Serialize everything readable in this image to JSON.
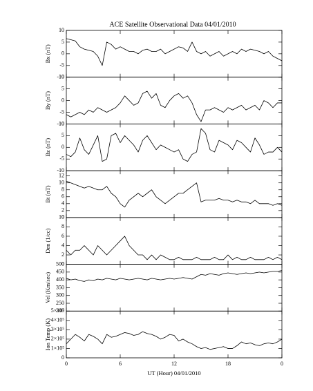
{
  "title": "ACE Satellite Observational Data   04/01/2010",
  "xlabel": "UT (Hour)   04/01/2010",
  "xlim": [
    0,
    24
  ],
  "xticks": [
    0,
    6,
    12,
    18,
    {
      "value": 24,
      "label": "0"
    }
  ],
  "x": [
    0,
    0.5,
    1,
    1.5,
    2,
    2.5,
    3,
    3.5,
    4,
    4.5,
    5,
    5.5,
    6,
    6.5,
    7,
    7.5,
    8,
    8.5,
    9,
    9.5,
    10,
    10.5,
    11,
    11.5,
    12,
    12.5,
    13,
    13.5,
    14,
    14.5,
    15,
    15.5,
    16,
    16.5,
    17,
    17.5,
    18,
    18.5,
    19,
    19.5,
    20,
    20.5,
    21,
    21.5,
    22,
    22.5,
    23,
    23.5,
    24
  ],
  "chart_data": [
    {
      "type": "line",
      "ylabel": "Bx (nT)",
      "ylim": [
        -10,
        10
      ],
      "yticks": [
        -10,
        -5,
        0,
        5,
        10
      ],
      "color": "#000000",
      "values": [
        6.5,
        6,
        5.5,
        3,
        2,
        1.5,
        1,
        -1,
        -5,
        5,
        4,
        2,
        3,
        2,
        1,
        1,
        0,
        1.5,
        2,
        1,
        1,
        2,
        0,
        1,
        2,
        3,
        2.5,
        1,
        5,
        1,
        0,
        1,
        -1,
        0,
        1,
        -1,
        0,
        1,
        0,
        2,
        1,
        2,
        1.5,
        1,
        0,
        1,
        -1,
        -2,
        -3
      ]
    },
    {
      "type": "line",
      "ylabel": "By (nT)",
      "ylim": [
        -10,
        10
      ],
      "yticks": [
        -10,
        -5,
        0,
        5,
        10
      ],
      "color": "#000000",
      "values": [
        -6,
        -7,
        -6,
        -5,
        -6,
        -4,
        -5,
        -3,
        -4,
        -5,
        -4,
        -3,
        -1,
        2,
        0,
        -2,
        -1,
        3,
        4,
        1,
        3,
        -2,
        -3,
        0,
        2,
        3,
        1,
        2,
        -1,
        -6,
        -9,
        -4,
        -4,
        -3,
        -4,
        -5,
        -3,
        -4,
        -3,
        -2,
        -4,
        -3,
        -2,
        -4,
        0,
        -1,
        -3,
        -1,
        -1
      ]
    },
    {
      "type": "line",
      "ylabel": "Bz (nT)",
      "ylim": [
        -10,
        10
      ],
      "yticks": [
        -10,
        -5,
        0,
        5,
        10
      ],
      "color": "#000000",
      "values": [
        -3,
        -4,
        -2,
        4,
        -1,
        -3,
        1,
        5,
        -6,
        -5,
        5,
        6,
        2,
        5,
        3,
        1,
        -2,
        3,
        5,
        2,
        -1,
        1,
        0,
        -1,
        -2,
        -1,
        -5,
        -6,
        -3,
        -2,
        8,
        6,
        -1,
        -2,
        3,
        2,
        1,
        -1,
        3,
        2,
        0,
        -2,
        4,
        1,
        -3,
        -2,
        -2,
        0,
        -2
      ]
    },
    {
      "type": "line",
      "ylabel": "Bt (nT)",
      "ylim": [
        0,
        13.5
      ],
      "yticks": [
        0,
        2,
        4,
        6,
        8,
        10,
        12
      ],
      "color": "#000000",
      "values": [
        10.5,
        10,
        9.5,
        9,
        8.5,
        9,
        8.5,
        8,
        8,
        9,
        7,
        6,
        4,
        3,
        5,
        6,
        7,
        6,
        7,
        8,
        6,
        5,
        4,
        5,
        6,
        7,
        7,
        8,
        9,
        10,
        4.5,
        5,
        5,
        5,
        5.5,
        5,
        5,
        4.5,
        5,
        4.5,
        4.5,
        4,
        5,
        4,
        4,
        4,
        3.5,
        4,
        3.5
      ]
    },
    {
      "type": "line",
      "ylabel": "Den (1/cc)",
      "ylim": [
        0,
        10
      ],
      "yticks": [
        0,
        2,
        4,
        6,
        8,
        10
      ],
      "color": "#000000",
      "values": [
        3,
        2,
        3,
        3,
        4,
        3,
        2,
        4,
        3,
        2,
        3,
        4,
        5,
        6,
        4,
        3,
        2,
        2,
        1,
        2,
        1,
        2,
        1.5,
        1,
        1,
        1.5,
        1,
        1,
        1,
        1.5,
        1,
        1,
        1,
        1.5,
        1,
        1,
        2,
        1,
        1.5,
        1,
        1,
        1.5,
        1,
        1,
        1,
        1.5,
        1,
        1.5,
        1
      ]
    },
    {
      "type": "line",
      "ylabel": "Vel (Km/sec)",
      "ylim": [
        200,
        500
      ],
      "yticks": [
        200,
        250,
        300,
        350,
        400,
        450,
        500
      ],
      "color": "#000000",
      "values": [
        410,
        400,
        405,
        395,
        390,
        400,
        395,
        405,
        400,
        410,
        405,
        400,
        410,
        405,
        400,
        405,
        410,
        405,
        400,
        410,
        405,
        400,
        405,
        410,
        405,
        410,
        415,
        410,
        405,
        420,
        435,
        430,
        440,
        435,
        430,
        440,
        445,
        440,
        435,
        440,
        445,
        440,
        445,
        450,
        445,
        450,
        455,
        455,
        460
      ]
    },
    {
      "type": "line",
      "ylabel": "Ion Temp (K)",
      "ylim": [
        0,
        500000
      ],
      "yticks": [
        0,
        {
          "value": 100000,
          "label": "1×10⁵"
        },
        {
          "value": 200000,
          "label": "2×10⁵"
        },
        {
          "value": 300000,
          "label": "3×10⁵"
        },
        {
          "value": 400000,
          "label": "4×10⁵"
        },
        {
          "value": 500000,
          "label": "5×10⁵"
        }
      ],
      "color": "#000000",
      "values": [
        150000,
        200000,
        250000,
        220000,
        180000,
        250000,
        230000,
        200000,
        150000,
        250000,
        220000,
        230000,
        250000,
        270000,
        260000,
        240000,
        250000,
        280000,
        260000,
        250000,
        230000,
        200000,
        220000,
        250000,
        240000,
        180000,
        200000,
        170000,
        150000,
        120000,
        100000,
        110000,
        90000,
        100000,
        110000,
        120000,
        100000,
        100000,
        130000,
        170000,
        150000,
        160000,
        140000,
        130000,
        150000,
        160000,
        150000,
        170000,
        200000
      ]
    }
  ]
}
